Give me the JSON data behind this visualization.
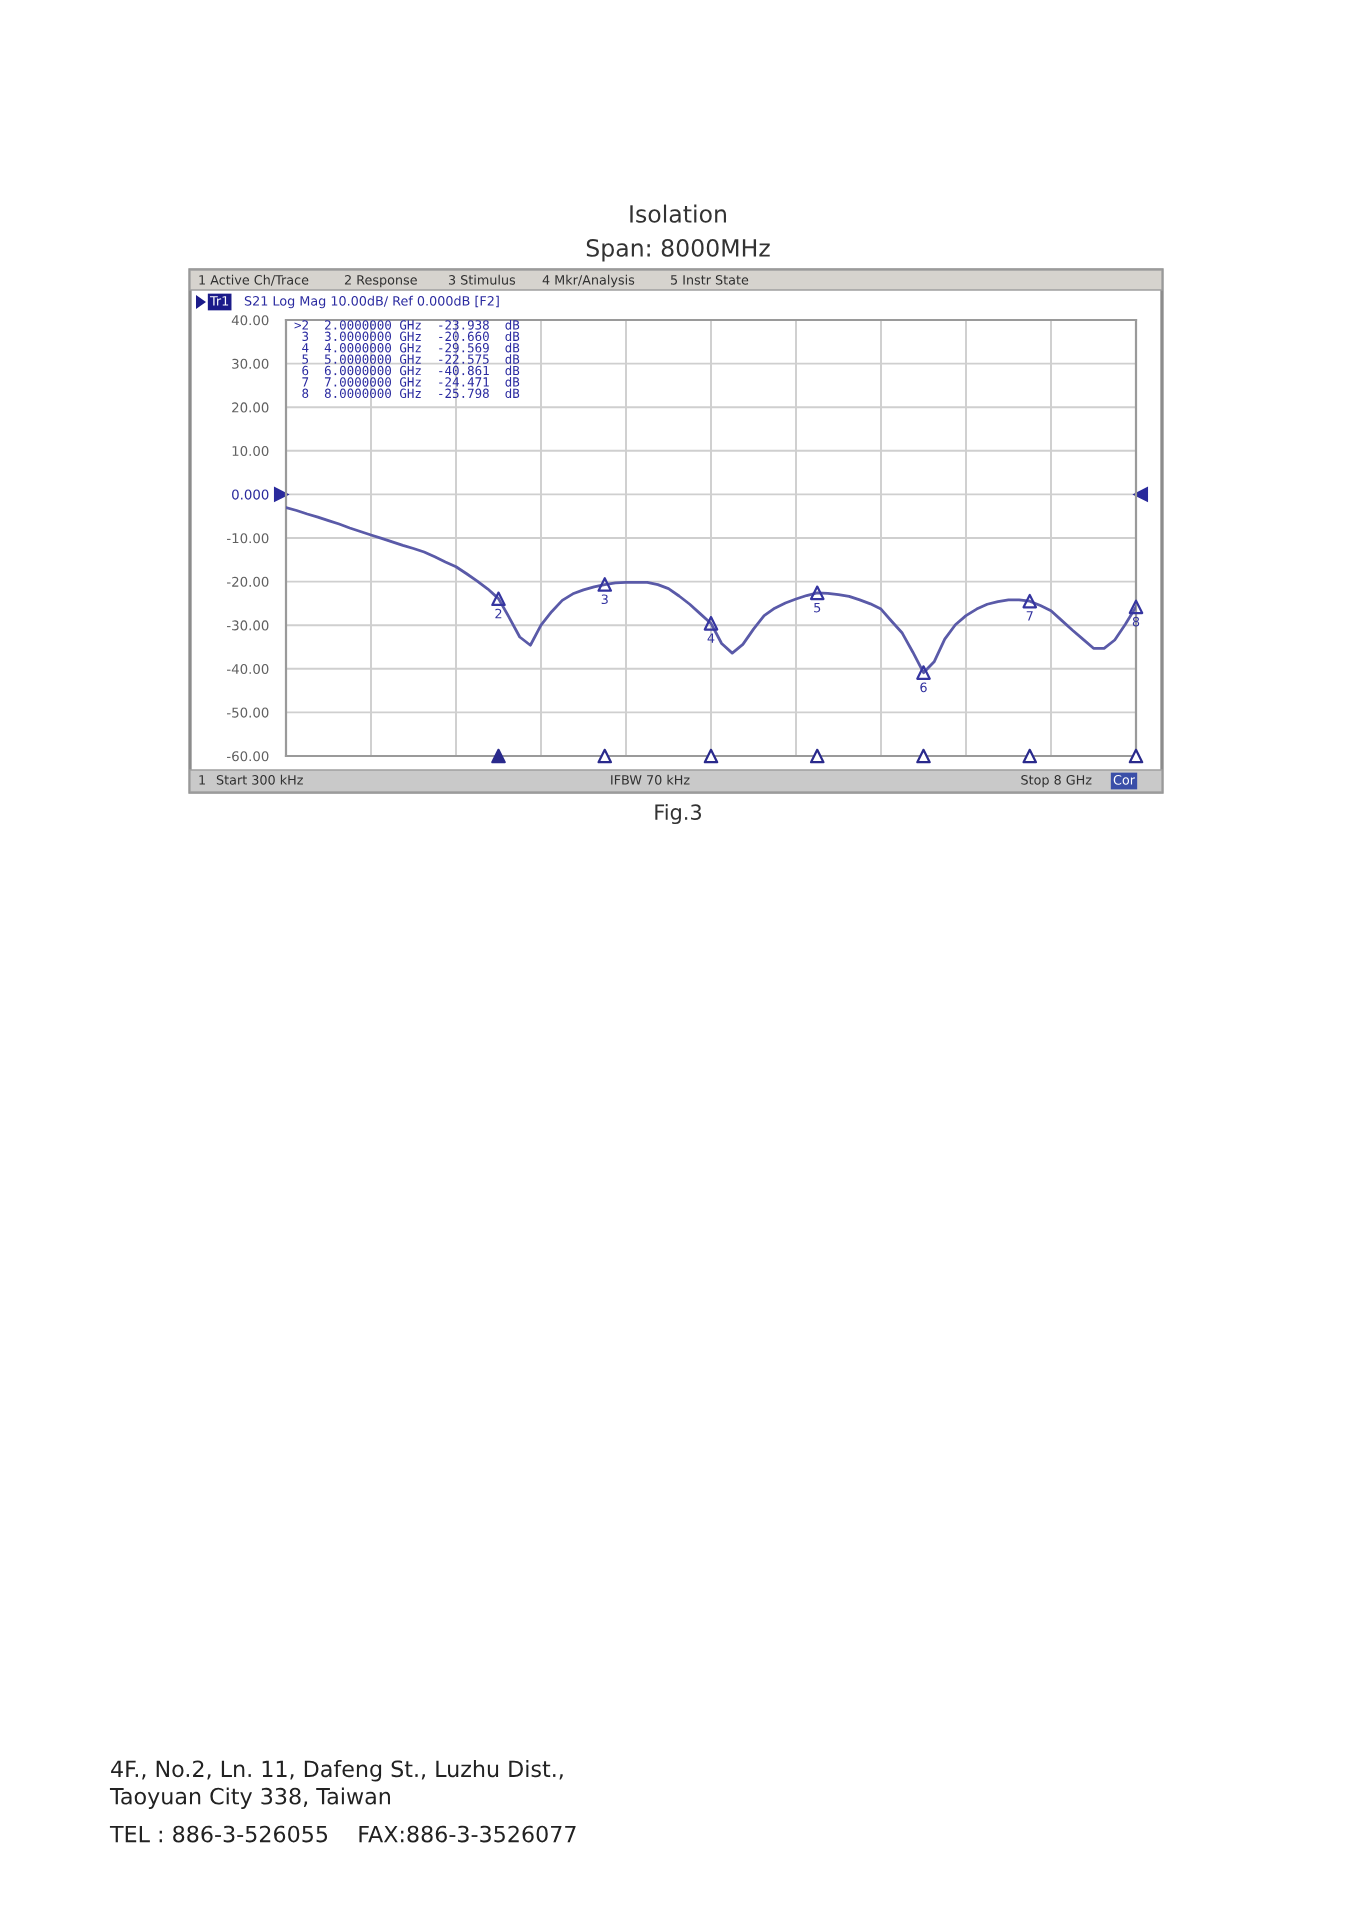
{
  "chart_data": {
    "type": "line",
    "title": "Isolation",
    "subtitle": "Span: 8000MHz",
    "categories": [
      null,
      null,
      null,
      null,
      null,
      null,
      null,
      null,
      null,
      null,
      null,
      null,
      null,
      null,
      null,
      null,
      null,
      null,
      null,
      null,
      null,
      null,
      null,
      null,
      null,
      null,
      null,
      null,
      null,
      null,
      null,
      null,
      null,
      null,
      null,
      null,
      null,
      null,
      null,
      null,
      null,
      null,
      null,
      null,
      null,
      null,
      null,
      null,
      null,
      null,
      null,
      null,
      null,
      null,
      null,
      null,
      null,
      null,
      null,
      null,
      null,
      null,
      null,
      null,
      null,
      null,
      null,
      null,
      null,
      null,
      null,
      null,
      null,
      null,
      null,
      null,
      null,
      null,
      null,
      null,
      null
    ],
    "tick_labels": "y",
    "ylim": [
      -60,
      40
    ],
    "yticks": [
      {
        "value": 40,
        "label": "40.00"
      },
      {
        "value": 30,
        "label": "30.00"
      },
      {
        "value": 20,
        "label": "20.00"
      },
      {
        "value": 10,
        "label": "10.00"
      },
      {
        "value": 0,
        "label": "0.000"
      },
      {
        "value": -10,
        "label": "-10.00"
      },
      {
        "value": -20,
        "label": "-20.00"
      },
      {
        "value": -30,
        "label": "-30.00"
      },
      {
        "value": -40,
        "label": "-40.00"
      },
      {
        "value": -50,
        "label": "-50.00"
      },
      {
        "value": -60,
        "label": "-60.00"
      }
    ],
    "grid": true,
    "series": [
      {
        "color": "#5a5aa8",
        "values": [
          -3.0,
          -3.7,
          -4.5,
          -5.2,
          -6.0,
          -6.8,
          -7.7,
          -8.5,
          -9.3,
          -10.1,
          -10.9,
          -11.7,
          -12.4,
          -13.2,
          -14.3,
          -15.5,
          -16.6,
          -18.2,
          -19.9,
          -21.7,
          -23.9,
          -28.2,
          -32.7,
          -34.6,
          -30.0,
          -26.9,
          -24.3,
          -22.8,
          -21.9,
          -21.2,
          -20.7,
          -20.3,
          -20.2,
          -20.2,
          -20.2,
          -20.7,
          -21.6,
          -23.3,
          -25.2,
          -27.4,
          -29.6,
          -34.2,
          -36.4,
          -34.4,
          -30.9,
          -27.8,
          -26.1,
          -24.9,
          -24.0,
          -23.2,
          -22.6,
          -22.7,
          -23.0,
          -23.4,
          -24.2,
          -25.1,
          -26.3,
          -29.1,
          -31.8,
          -36.2,
          -40.9,
          -38.4,
          -33.2,
          -29.9,
          -27.8,
          -26.3,
          -25.2,
          -24.6,
          -24.2,
          -24.2,
          -24.5,
          -25.5,
          -26.7,
          -28.9,
          -31.1,
          -33.2,
          -35.3,
          -35.3,
          -33.4,
          -29.8,
          -25.8
        ]
      },
      {
        "type": "scatter",
        "marker": "triangle",
        "color": "#3535a0",
        "values": [
          null,
          null,
          null,
          null,
          null,
          null,
          null,
          null,
          null,
          null,
          null,
          null,
          null,
          null,
          null,
          null,
          null,
          null,
          null,
          null,
          -23.938,
          null,
          null,
          null,
          null,
          null,
          null,
          null,
          null,
          null,
          -20.66,
          null,
          null,
          null,
          null,
          null,
          null,
          null,
          null,
          null,
          -29.569,
          null,
          null,
          null,
          null,
          null,
          null,
          null,
          null,
          null,
          -22.575,
          null,
          null,
          null,
          null,
          null,
          null,
          null,
          null,
          null,
          -40.861,
          null,
          null,
          null,
          null,
          null,
          null,
          null,
          null,
          null,
          -24.471,
          null,
          null,
          null,
          null,
          null,
          null,
          null,
          null,
          null,
          -25.798
        ]
      },
      {
        "type": "scatter",
        "marker": "triangle",
        "color": "#2a2a8c",
        "values": [
          null,
          null,
          null,
          null,
          null,
          null,
          null,
          null,
          null,
          null,
          null,
          null,
          null,
          null,
          null,
          null,
          null,
          null,
          null,
          null,
          -60,
          null,
          null,
          null,
          null,
          null,
          null,
          null,
          null,
          null,
          -60,
          null,
          null,
          null,
          null,
          null,
          null,
          null,
          null,
          null,
          -60,
          null,
          null,
          null,
          null,
          null,
          null,
          null,
          null,
          null,
          -60,
          null,
          null,
          null,
          null,
          null,
          null,
          null,
          null,
          null,
          -60,
          null,
          null,
          null,
          null,
          null,
          null,
          null,
          null,
          null,
          -60,
          null,
          null,
          null,
          null,
          null,
          null,
          null,
          null,
          null,
          -60
        ],
        "colors": [
          null,
          null,
          null,
          null,
          null,
          null,
          null,
          null,
          null,
          null,
          null,
          null,
          null,
          null,
          null,
          null,
          null,
          null,
          null,
          null,
          "#2a2a8c",
          null,
          null,
          null,
          null,
          null,
          null,
          null,
          null,
          null,
          "#ffffff",
          null,
          null,
          null,
          null,
          null,
          null,
          null,
          null,
          null,
          "#ffffff",
          null,
          null,
          null,
          null,
          null,
          null,
          null,
          null,
          null,
          "#ffffff",
          null,
          null,
          null,
          null,
          null,
          null,
          null,
          null,
          null,
          "#ffffff",
          null,
          null,
          null,
          null,
          null,
          null,
          null,
          null,
          null,
          "#ffffff",
          null,
          null,
          null,
          null,
          null,
          null,
          null,
          null,
          null,
          "#ffffff"
        ]
      }
    ],
    "annotations": [
      "1 Active Ch/Trace",
      "2 Response",
      "3 Stimulus",
      "4 Mkr/Analysis",
      "5 Instr State",
      "Tr1",
      "S21 Log Mag 10.00dB/ Ref 0.000dB [F2]",
      ">2  2.0000000 GHz  -23.938  dB",
      " 3  3.0000000 GHz  -20.660  dB",
      " 4  4.0000000 GHz  -29.569  dB",
      " 5  5.0000000 GHz  -22.575  dB",
      " 6  6.0000000 GHz  -40.861  dB",
      " 7  7.0000000 GHz  -24.471  dB",
      " 8  8.0000000 GHz  -25.798  dB",
      "1",
      "Start 300 kHz",
      "IFBW 70 kHz",
      "Stop 8 GHz",
      "Cor",
      "Fig.3",
      "4F., No.2, Ln. 11, Dafeng St., Luzhu Dist.,\nTaoyuan City 338, Taiwan",
      "TEL : 886-3-526055    FAX:886-3-3526077",
      "2",
      "3",
      "4",
      "5",
      "6",
      "7",
      "8"
    ]
  }
}
